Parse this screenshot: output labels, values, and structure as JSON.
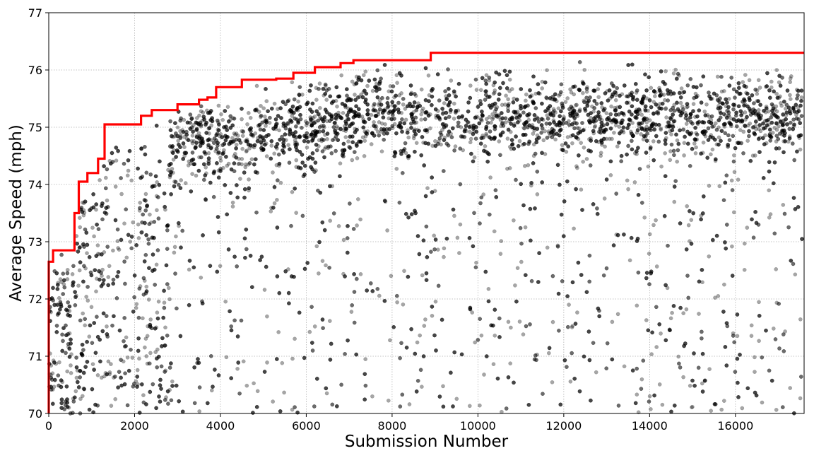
{
  "chart_data": {
    "type": "scatter",
    "title": "",
    "xlabel": "Submission Number",
    "ylabel": "Average Speed (mph)",
    "xlim": [
      0,
      17600
    ],
    "ylim": [
      70,
      77
    ],
    "xticks": [
      0,
      2000,
      4000,
      6000,
      8000,
      10000,
      12000,
      14000,
      16000
    ],
    "yticks": [
      70,
      71,
      72,
      73,
      74,
      75,
      76,
      77
    ],
    "xtick_labels": [
      "0",
      "2000",
      "4000",
      "6000",
      "8000",
      "10000",
      "12000",
      "14000",
      "16000"
    ],
    "ytick_labels": [
      "70",
      "71",
      "72",
      "73",
      "74",
      "75",
      "76",
      "77"
    ],
    "grid": true,
    "colors": {
      "points": "#000000",
      "best_line": "#ff0000"
    },
    "series": [
      {
        "kind": "scatter",
        "approx_point_count": 17600,
        "point_opacity": 0.35,
        "dense_bands": [
          {
            "x": [
              0,
              3000
            ],
            "y_center": 71.8,
            "y_spread": 1.2
          },
          {
            "x": [
              3000,
              8000
            ],
            "y_center": 75.0,
            "y_spread": 0.5
          },
          {
            "x": [
              8800,
              9800
            ],
            "y_center": 75.4,
            "y_spread": 0.4
          },
          {
            "x": [
              12300,
              13800
            ],
            "y_center": 75.4,
            "y_spread": 0.35
          },
          {
            "x": [
              15800,
              16300
            ],
            "y_center": 75.3,
            "y_spread": 0.35
          }
        ]
      },
      {
        "kind": "step",
        "points": [
          [
            0,
            70.0
          ],
          [
            0,
            72.65
          ],
          [
            100,
            72.65
          ],
          [
            100,
            72.85
          ],
          [
            600,
            72.85
          ],
          [
            600,
            73.5
          ],
          [
            700,
            73.5
          ],
          [
            700,
            74.05
          ],
          [
            900,
            74.05
          ],
          [
            900,
            74.2
          ],
          [
            1150,
            74.2
          ],
          [
            1150,
            74.45
          ],
          [
            1300,
            74.45
          ],
          [
            1300,
            75.05
          ],
          [
            2150,
            75.05
          ],
          [
            2150,
            75.2
          ],
          [
            2400,
            75.2
          ],
          [
            2400,
            75.3
          ],
          [
            3000,
            75.3
          ],
          [
            3000,
            75.4
          ],
          [
            3500,
            75.4
          ],
          [
            3500,
            75.48
          ],
          [
            3700,
            75.48
          ],
          [
            3700,
            75.52
          ],
          [
            3900,
            75.52
          ],
          [
            3900,
            75.7
          ],
          [
            4500,
            75.7
          ],
          [
            4500,
            75.83
          ],
          [
            5300,
            75.83
          ],
          [
            5300,
            75.85
          ],
          [
            5700,
            75.85
          ],
          [
            5700,
            75.95
          ],
          [
            6200,
            75.95
          ],
          [
            6200,
            76.05
          ],
          [
            6800,
            76.05
          ],
          [
            6800,
            76.12
          ],
          [
            7100,
            76.12
          ],
          [
            7100,
            76.17
          ],
          [
            8900,
            76.17
          ],
          [
            8900,
            76.3
          ],
          [
            17600,
            76.3
          ]
        ]
      }
    ]
  }
}
